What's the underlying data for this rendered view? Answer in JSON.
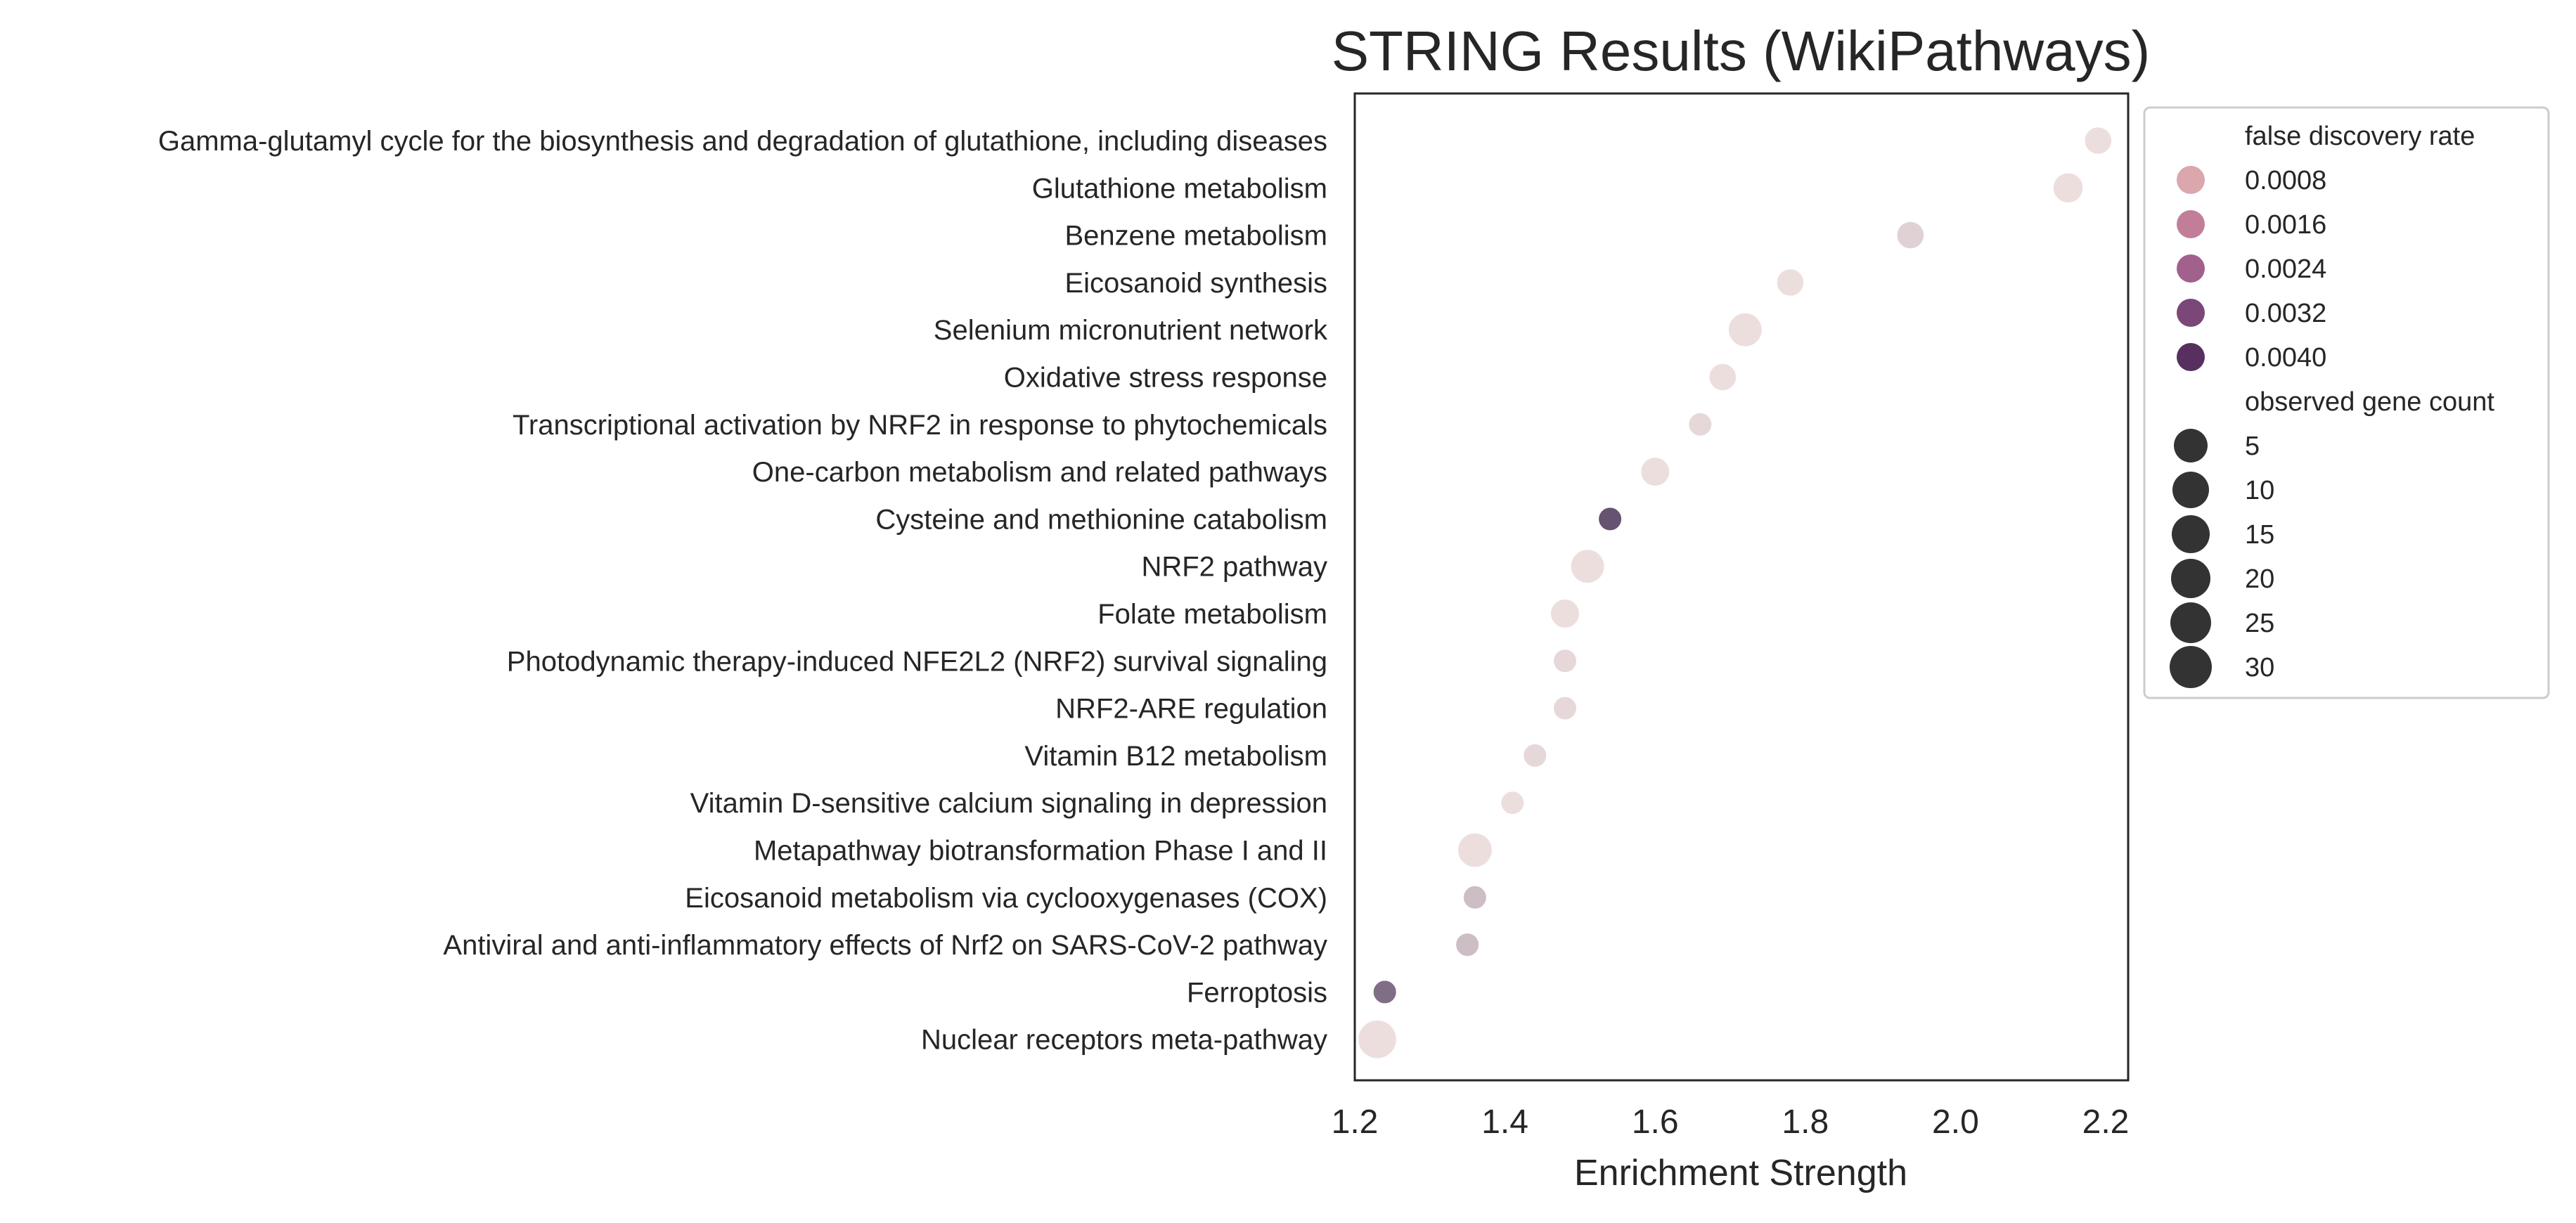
{
  "chart_data": {
    "type": "scatter",
    "title": "STRING Results (WikiPathways)",
    "xlabel": "Enrichment Strength",
    "ylabel": "",
    "xlim": [
      1.2,
      2.23
    ],
    "xticks": [
      "1.2",
      "1.4",
      "1.6",
      "1.8",
      "2.0",
      "2.2"
    ],
    "xtick_values": [
      1.2,
      1.4,
      1.6,
      1.8,
      2.0,
      2.2
    ],
    "grid": false,
    "legend_position": "outside-right-top",
    "points": [
      {
        "category": "Gamma-glutamyl cycle for the biosynthesis and degradation of glutathione, including diseases",
        "x": 2.19,
        "fdr": 0.0002,
        "gene_count": 6
      },
      {
        "category": "Glutathione metabolism",
        "x": 2.15,
        "fdr": 0.0002,
        "gene_count": 8
      },
      {
        "category": "Benzene metabolism",
        "x": 1.94,
        "fdr": 0.0006,
        "gene_count": 6
      },
      {
        "category": "Eicosanoid synthesis",
        "x": 1.78,
        "fdr": 0.0002,
        "gene_count": 6
      },
      {
        "category": "Selenium micronutrient network",
        "x": 1.72,
        "fdr": 0.0002,
        "gene_count": 12
      },
      {
        "category": "Oxidative stress response",
        "x": 1.69,
        "fdr": 0.0002,
        "gene_count": 6
      },
      {
        "category": "Transcriptional activation by NRF2 in response to phytochemicals",
        "x": 1.66,
        "fdr": 0.0004,
        "gene_count": 5
      },
      {
        "category": "One-carbon metabolism and related pathways",
        "x": 1.6,
        "fdr": 0.0002,
        "gene_count": 7
      },
      {
        "category": "Cysteine and methionine catabolism",
        "x": 1.54,
        "fdr": 0.0044,
        "gene_count": 5
      },
      {
        "category": "NRF2 pathway",
        "x": 1.51,
        "fdr": 0.0002,
        "gene_count": 12
      },
      {
        "category": "Folate metabolism",
        "x": 1.48,
        "fdr": 0.0002,
        "gene_count": 7
      },
      {
        "category": "Photodynamic therapy-induced NFE2L2 (NRF2) survival signaling",
        "x": 1.48,
        "fdr": 0.0004,
        "gene_count": 5
      },
      {
        "category": "NRF2-ARE regulation",
        "x": 1.48,
        "fdr": 0.0004,
        "gene_count": 5
      },
      {
        "category": "Vitamin B12 metabolism",
        "x": 1.44,
        "fdr": 0.0004,
        "gene_count": 5
      },
      {
        "category": "Vitamin D-sensitive calcium signaling in depression",
        "x": 1.41,
        "fdr": 0.0002,
        "gene_count": 5
      },
      {
        "category": "Metapathway biotransformation Phase I and II",
        "x": 1.36,
        "fdr": 0.0002,
        "gene_count": 13
      },
      {
        "category": "Eicosanoid metabolism via cyclooxygenases (COX)",
        "x": 1.36,
        "fdr": 0.0012,
        "gene_count": 5
      },
      {
        "category": "Antiviral and anti-inflammatory effects of Nrf2 on SARS-CoV-2 pathway",
        "x": 1.35,
        "fdr": 0.0012,
        "gene_count": 5
      },
      {
        "category": "Ferroptosis",
        "x": 1.24,
        "fdr": 0.0036,
        "gene_count": 5
      },
      {
        "category": "Nuclear receptors meta-pathway",
        "x": 1.23,
        "fdr": 0.0002,
        "gene_count": 20
      }
    ],
    "legend": {
      "hue_title": "false discovery rate",
      "hue_entries": [
        {
          "label": "0.0008",
          "color": "#dba6ac"
        },
        {
          "label": "0.0016",
          "color": "#c27e99"
        },
        {
          "label": "0.0024",
          "color": "#a2608c"
        },
        {
          "label": "0.0032",
          "color": "#7b4678"
        },
        {
          "label": "0.0040",
          "color": "#57305f"
        }
      ],
      "size_title": "observed gene count",
      "size_entries": [
        {
          "label": "5",
          "value": 5
        },
        {
          "label": "10",
          "value": 10
        },
        {
          "label": "15",
          "value": 15
        },
        {
          "label": "20",
          "value": 20
        },
        {
          "label": "25",
          "value": 25
        },
        {
          "label": "30",
          "value": 30
        }
      ],
      "size_marker_color": "#333333"
    }
  }
}
